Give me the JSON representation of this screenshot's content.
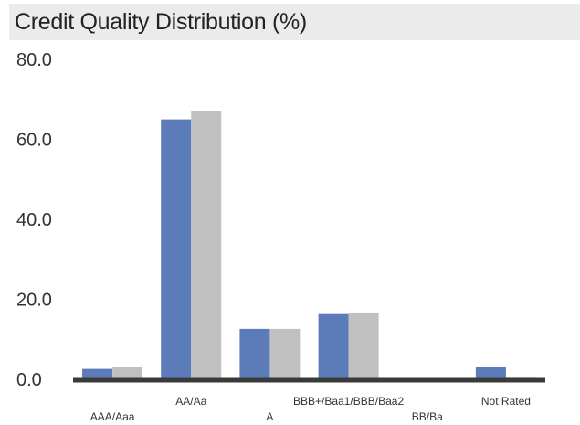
{
  "chart_data": {
    "type": "bar",
    "title": "Credit Quality Distribution (%)",
    "categories": [
      "AAA/Aaa",
      "AA/Aa",
      "A",
      "BBB+/Baa1/BBB/Baa2",
      "BB/Ba",
      "Not Rated"
    ],
    "series": [
      {
        "values": [
          2.6,
          65.0,
          12.6,
          16.3,
          0.3,
          3.1
        ],
        "color": "#5b7bb9"
      },
      {
        "values": [
          3.1,
          67.2,
          12.6,
          16.7,
          0.3,
          0.4
        ],
        "color": "#c0c0c0"
      }
    ],
    "yticks": [
      "0.0",
      "20.0",
      "40.0",
      "60.0",
      "80.0"
    ],
    "ylim": [
      0,
      80
    ],
    "grid": false,
    "legend": "none"
  }
}
